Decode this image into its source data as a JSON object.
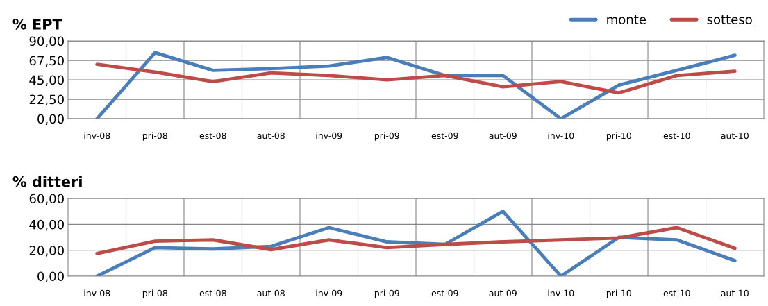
{
  "chart_data": [
    {
      "type": "line",
      "title": "% EPT",
      "categories": [
        "inv-08",
        "pri-08",
        "est-08",
        "aut-08",
        "inv-09",
        "pri-09",
        "est-09",
        "aut-09",
        "inv-10",
        "pri-10",
        "est-10",
        "aut-10"
      ],
      "series": [
        {
          "name": "monte",
          "color": "#4a7ebb",
          "values": [
            0,
            76.5,
            56,
            58,
            61,
            71,
            50,
            50,
            0,
            39,
            56,
            73.5
          ]
        },
        {
          "name": "sotteso",
          "color": "#be4b48",
          "values": [
            63,
            54,
            43,
            53,
            50,
            45,
            50,
            37,
            43,
            30,
            50,
            55
          ]
        }
      ],
      "ylim": [
        0,
        90
      ],
      "yticks": [
        {
          "value": 0,
          "label": "0,00"
        },
        {
          "value": 22.5,
          "label": "22,50"
        },
        {
          "value": 45,
          "label": "45,00"
        },
        {
          "value": 67.5,
          "label": "67,50"
        },
        {
          "value": 90,
          "label": "90,00"
        }
      ],
      "grid": true,
      "legend": "top right",
      "marker": "none",
      "line_style": "solid"
    },
    {
      "type": "line",
      "title": "% ditteri",
      "categories": [
        "inv-08",
        "pri-08",
        "est-08",
        "aut-08",
        "inv-09",
        "pri-09",
        "est-09",
        "aut-09",
        "inv-10",
        "pri-10",
        "est-10",
        "aut-10"
      ],
      "series": [
        {
          "color": "#4a7ebb",
          "values": [
            0,
            22,
            21,
            23,
            37.5,
            26.5,
            24.5,
            50,
            0,
            30,
            28,
            12
          ]
        },
        {
          "color": "#be4b48",
          "values": [
            17.5,
            27,
            28,
            20.5,
            28,
            22,
            24.5,
            26.5,
            28,
            29.5,
            37.5,
            21.5
          ]
        }
      ],
      "ylim": [
        0,
        60
      ],
      "yticks": [
        {
          "value": 0,
          "label": "0,00"
        },
        {
          "value": 20,
          "label": "20,00"
        },
        {
          "value": 40,
          "label": "40,00"
        },
        {
          "value": 60,
          "label": "60,00"
        }
      ],
      "grid": true,
      "marker": "none",
      "line_style": "solid"
    }
  ]
}
